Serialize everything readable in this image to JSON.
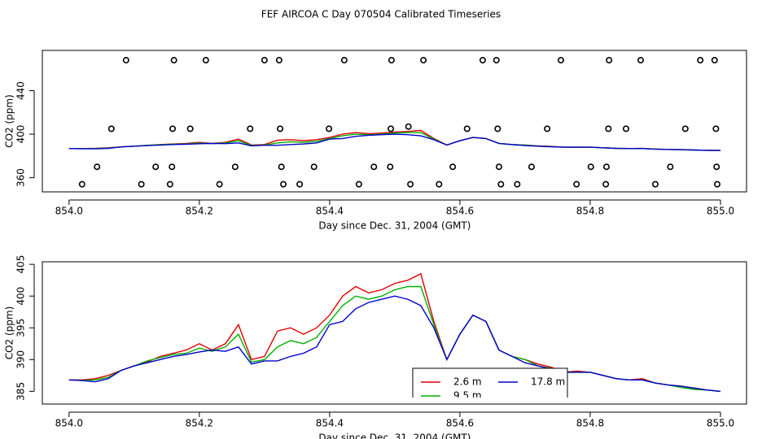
{
  "title": "FEF AIRCOA C  Day 070504  Calibrated Timeseries",
  "chart_data": [
    {
      "type": "line",
      "x_label": "Day since Dec. 31, 2004 (GMT)",
      "y_label": "CO2 (ppm)",
      "xlim": [
        853.959,
        855.04
      ],
      "ylim": [
        347,
        477
      ],
      "xticks": [
        {
          "value": 854,
          "label": "854.0"
        },
        854.2,
        854.4,
        854.6,
        854.8,
        {
          "value": 855,
          "label": "855.0"
        }
      ],
      "yticks": [
        360,
        400,
        440
      ],
      "x": [
        854.0,
        854.02,
        854.04,
        854.06,
        854.08,
        854.1,
        854.12,
        854.14,
        854.16,
        854.18,
        854.2,
        854.22,
        854.24,
        854.26,
        854.28,
        854.3,
        854.32,
        854.34,
        854.36,
        854.38,
        854.4,
        854.42,
        854.44,
        854.46,
        854.48,
        854.5,
        854.52,
        854.54,
        854.56,
        854.58,
        854.6,
        854.62,
        854.64,
        854.66,
        854.68,
        854.7,
        854.72,
        854.74,
        854.76,
        854.78,
        854.8,
        854.82,
        854.84,
        854.86,
        854.88,
        854.9,
        854.92,
        854.94,
        854.96,
        854.98,
        855.0
      ],
      "series": [
        {
          "color": "#e00000",
          "values": [
            386.8,
            386.8,
            387.0,
            387.5,
            388.3,
            389.0,
            389.6,
            390.5,
            391.0,
            391.5,
            392.5,
            391.5,
            392.5,
            395.5,
            390.0,
            390.5,
            394.5,
            395.0,
            394.0,
            395.0,
            397.0,
            400.0,
            401.5,
            400.5,
            401.0,
            402.0,
            402.5,
            403.5,
            396.0,
            390.0,
            394.0,
            397.0,
            396.0,
            391.5,
            390.5,
            390.0,
            389.3,
            388.8,
            388.0,
            388.2,
            388.0,
            387.5,
            387.0,
            386.8,
            387.0,
            386.3,
            386.0,
            385.8,
            385.5,
            385.2,
            385.0
          ]
        },
        {
          "color": "#00b000",
          "values": [
            386.8,
            386.7,
            386.8,
            387.2,
            388.3,
            389.0,
            389.8,
            390.3,
            390.8,
            391.0,
            391.8,
            391.3,
            392.0,
            394.0,
            389.6,
            390.0,
            392.0,
            393.0,
            392.5,
            393.5,
            396.0,
            398.5,
            400.0,
            399.5,
            400.0,
            401.0,
            401.5,
            401.5,
            395.5,
            390.0,
            394.0,
            397.0,
            396.0,
            391.5,
            390.5,
            390.0,
            389.0,
            388.6,
            388.0,
            388.0,
            388.0,
            387.5,
            387.0,
            386.8,
            386.8,
            386.3,
            386.0,
            385.6,
            385.3,
            385.2,
            385.0
          ]
        },
        {
          "color": "#0000cc",
          "values": [
            386.8,
            386.7,
            386.5,
            387.0,
            388.3,
            389.0,
            389.5,
            390.0,
            390.5,
            390.8,
            391.2,
            391.5,
            391.3,
            392.0,
            389.3,
            389.8,
            389.8,
            390.5,
            391.0,
            392.0,
            395.5,
            396.0,
            398.0,
            399.0,
            399.5,
            400.0,
            399.5,
            398.5,
            395.0,
            390.0,
            394.0,
            397.0,
            396.0,
            391.5,
            390.5,
            389.5,
            389.0,
            388.5,
            388.0,
            388.0,
            388.0,
            387.5,
            387.0,
            386.8,
            386.8,
            386.3,
            386.0,
            385.8,
            385.5,
            385.2,
            385.0
          ]
        },
        {
          "color": "#000000",
          "marker": "circle",
          "x": [
            854.0875,
            854.161,
            854.21,
            854.3,
            854.3225,
            854.4225,
            854.495,
            854.544,
            854.635,
            854.656,
            854.755,
            854.829,
            854.8775,
            854.969,
            854.991,
            854.065,
            854.159,
            854.186,
            854.278,
            854.324,
            854.399,
            854.494,
            854.521,
            854.611,
            854.658,
            854.734,
            854.828,
            854.855,
            854.946,
            854.993,
            854.043,
            854.133,
            854.158,
            854.255,
            854.326,
            854.376,
            854.468,
            854.493,
            854.589,
            854.66,
            854.71,
            854.801,
            854.825,
            854.923,
            854.994,
            854.02,
            854.111,
            854.155,
            854.231,
            854.329,
            854.354,
            854.445,
            854.524,
            854.568,
            854.663,
            854.688,
            854.779,
            854.824,
            854.9,
            854.995
          ],
          "values": [
            468,
            468,
            468,
            468,
            468,
            468,
            468,
            468,
            468,
            468,
            468,
            468,
            468,
            468,
            468,
            405,
            405,
            405,
            405,
            405,
            405,
            405,
            407,
            405,
            405,
            405,
            405,
            405,
            405,
            405,
            370,
            370,
            370,
            370,
            370,
            370,
            370,
            370,
            370,
            370,
            370,
            370,
            370,
            370,
            370,
            354,
            354,
            354,
            354,
            354,
            354,
            354,
            354,
            354,
            354,
            354,
            354,
            354,
            354,
            354
          ]
        }
      ]
    },
    {
      "type": "line",
      "x_label": "Day since Dec. 31, 2004 (GMT)",
      "y_label": "CO2 (ppm)",
      "xlim": [
        853.959,
        855.04
      ],
      "ylim": [
        383,
        405.4
      ],
      "xticks": [
        {
          "value": 854,
          "label": "854.0"
        },
        854.2,
        854.4,
        854.6,
        854.8,
        {
          "value": 855,
          "label": "855.0"
        }
      ],
      "yticks": [
        385,
        390,
        395,
        400,
        405
      ],
      "legend": "bottom",
      "x": [
        854.0,
        854.02,
        854.04,
        854.06,
        854.08,
        854.1,
        854.12,
        854.14,
        854.16,
        854.18,
        854.2,
        854.22,
        854.24,
        854.26,
        854.28,
        854.3,
        854.32,
        854.34,
        854.36,
        854.38,
        854.4,
        854.42,
        854.44,
        854.46,
        854.48,
        854.5,
        854.52,
        854.54,
        854.56,
        854.58,
        854.6,
        854.62,
        854.64,
        854.66,
        854.68,
        854.7,
        854.72,
        854.74,
        854.76,
        854.78,
        854.8,
        854.82,
        854.84,
        854.86,
        854.88,
        854.9,
        854.92,
        854.94,
        854.96,
        854.98,
        855.0
      ],
      "series": [
        {
          "name": "2.6 m",
          "color": "#e00000",
          "values": [
            386.8,
            386.8,
            387.0,
            387.5,
            388.3,
            389.0,
            389.6,
            390.5,
            391.0,
            391.5,
            392.5,
            391.5,
            392.5,
            395.5,
            390.0,
            390.5,
            394.5,
            395.0,
            394.0,
            395.0,
            397.0,
            400.0,
            401.5,
            400.5,
            401.0,
            402.0,
            402.5,
            403.5,
            396.0,
            390.0,
            394.0,
            397.0,
            396.0,
            391.5,
            390.5,
            390.0,
            389.3,
            388.8,
            388.0,
            388.2,
            388.0,
            387.5,
            387.0,
            386.8,
            387.0,
            386.3,
            386.0,
            385.8,
            385.5,
            385.2,
            385.0
          ]
        },
        {
          "name": "17.8 m",
          "color": "#0000cc",
          "values": [
            386.8,
            386.7,
            386.5,
            387.0,
            388.3,
            389.0,
            389.5,
            390.0,
            390.5,
            390.8,
            391.2,
            391.5,
            391.3,
            392.0,
            389.3,
            389.8,
            389.8,
            390.5,
            391.0,
            392.0,
            395.5,
            396.0,
            398.0,
            399.0,
            399.5,
            400.0,
            399.5,
            398.5,
            395.0,
            390.0,
            394.0,
            397.0,
            396.0,
            391.5,
            390.5,
            389.5,
            389.0,
            388.5,
            388.0,
            388.0,
            388.0,
            387.5,
            387.0,
            386.8,
            386.8,
            386.3,
            386.0,
            385.8,
            385.5,
            385.2,
            385.0
          ]
        },
        {
          "name": "9.5 m",
          "color": "#00b000",
          "values": [
            386.8,
            386.7,
            386.8,
            387.2,
            388.3,
            389.0,
            389.8,
            390.3,
            390.8,
            391.0,
            391.8,
            391.3,
            392.0,
            394.0,
            389.6,
            390.0,
            392.0,
            393.0,
            392.5,
            393.5,
            396.0,
            398.5,
            400.0,
            399.5,
            400.0,
            401.0,
            401.5,
            401.5,
            395.5,
            390.0,
            394.0,
            397.0,
            396.0,
            391.5,
            390.5,
            390.0,
            389.0,
            388.6,
            388.0,
            388.0,
            388.0,
            387.5,
            387.0,
            386.8,
            386.8,
            386.3,
            386.0,
            385.6,
            385.3,
            385.2,
            385.0
          ]
        }
      ]
    }
  ]
}
